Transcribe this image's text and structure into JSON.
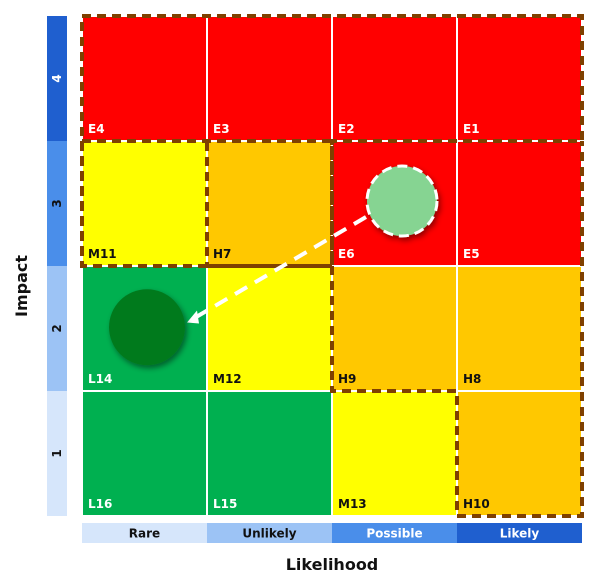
{
  "axes": {
    "y_title": "Impact",
    "x_title": "Likelihood",
    "impact_levels": [
      {
        "label": "4",
        "bg": "#1f5fcf",
        "fg": "#ffffff"
      },
      {
        "label": "3",
        "bg": "#4a8eea",
        "fg": "#111111"
      },
      {
        "label": "2",
        "bg": "#9cc3f5",
        "fg": "#111111"
      },
      {
        "label": "1",
        "bg": "#d6e6fb",
        "fg": "#111111"
      }
    ],
    "likelihood_levels": [
      {
        "label": "Rare",
        "bg": "#d6e6fb",
        "fg": "#111111"
      },
      {
        "label": "Unlikely",
        "bg": "#9cc3f5",
        "fg": "#111111"
      },
      {
        "label": "Possible",
        "bg": "#4a8eea",
        "fg": "#ffffff"
      },
      {
        "label": "Likely",
        "bg": "#1f5fcf",
        "fg": "#ffffff"
      }
    ]
  },
  "colors": {
    "extreme": "#ff0000",
    "high": "#ffc800",
    "medium": "#ffff00",
    "low": "#00b050",
    "grid_line": "#ffffff",
    "zone_border": "#7f4000"
  },
  "grid": [
    [
      {
        "label": "E4",
        "level": "extreme"
      },
      {
        "label": "E3",
        "level": "extreme"
      },
      {
        "label": "E2",
        "level": "extreme"
      },
      {
        "label": "E1",
        "level": "extreme"
      }
    ],
    [
      {
        "label": "M11",
        "level": "medium"
      },
      {
        "label": "H7",
        "level": "high"
      },
      {
        "label": "E6",
        "level": "extreme"
      },
      {
        "label": "E5",
        "level": "extreme"
      }
    ],
    [
      {
        "label": "L14",
        "level": "low"
      },
      {
        "label": "M12",
        "level": "medium"
      },
      {
        "label": "H9",
        "level": "high"
      },
      {
        "label": "H8",
        "level": "high"
      }
    ],
    [
      {
        "label": "L16",
        "level": "low"
      },
      {
        "label": "L15",
        "level": "low"
      },
      {
        "label": "M13",
        "level": "medium"
      },
      {
        "label": "H10",
        "level": "high"
      }
    ]
  ],
  "markers": {
    "current": {
      "cell": "E6",
      "color": "#86d492",
      "name": "current-risk-marker"
    },
    "target": {
      "cell": "L14",
      "color": "#007a1f",
      "name": "target-risk-marker"
    }
  }
}
